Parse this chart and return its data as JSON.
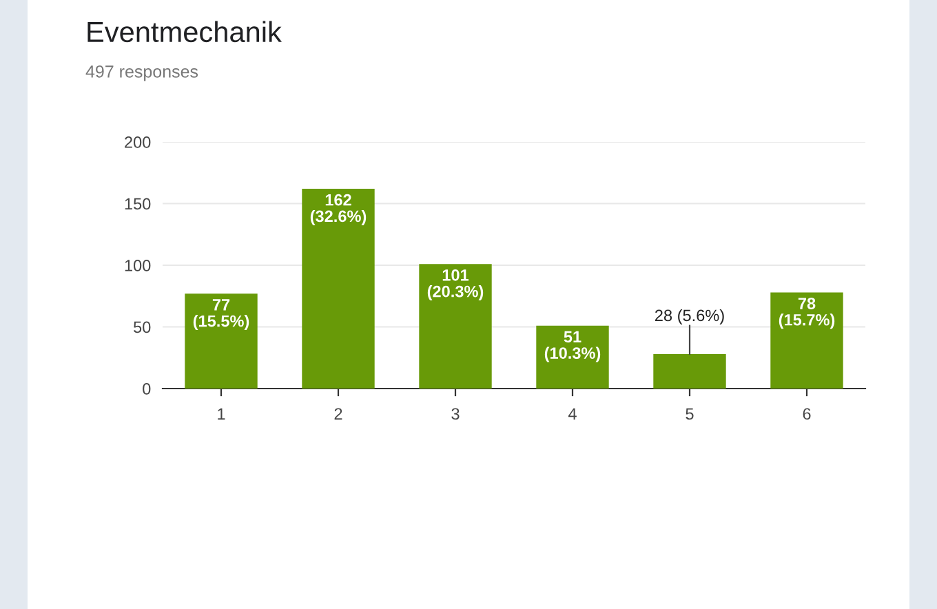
{
  "chart_data": {
    "type": "bar",
    "title": "Eventmechanik",
    "subtitle": "497 responses",
    "categories": [
      "1",
      "2",
      "3",
      "4",
      "5",
      "6"
    ],
    "values": [
      77,
      162,
      101,
      51,
      28,
      78
    ],
    "value_labels": [
      "77 (15.5%)",
      "162 (32.6%)",
      "101 (20.3%)",
      "51 (10.3%)",
      "28 (5.6%)",
      "78 (15.7%)"
    ],
    "color": "#689a08",
    "ylim": [
      0,
      200
    ],
    "yticks": [
      0,
      50,
      100,
      150,
      200
    ],
    "grid": "y",
    "legend": false
  }
}
